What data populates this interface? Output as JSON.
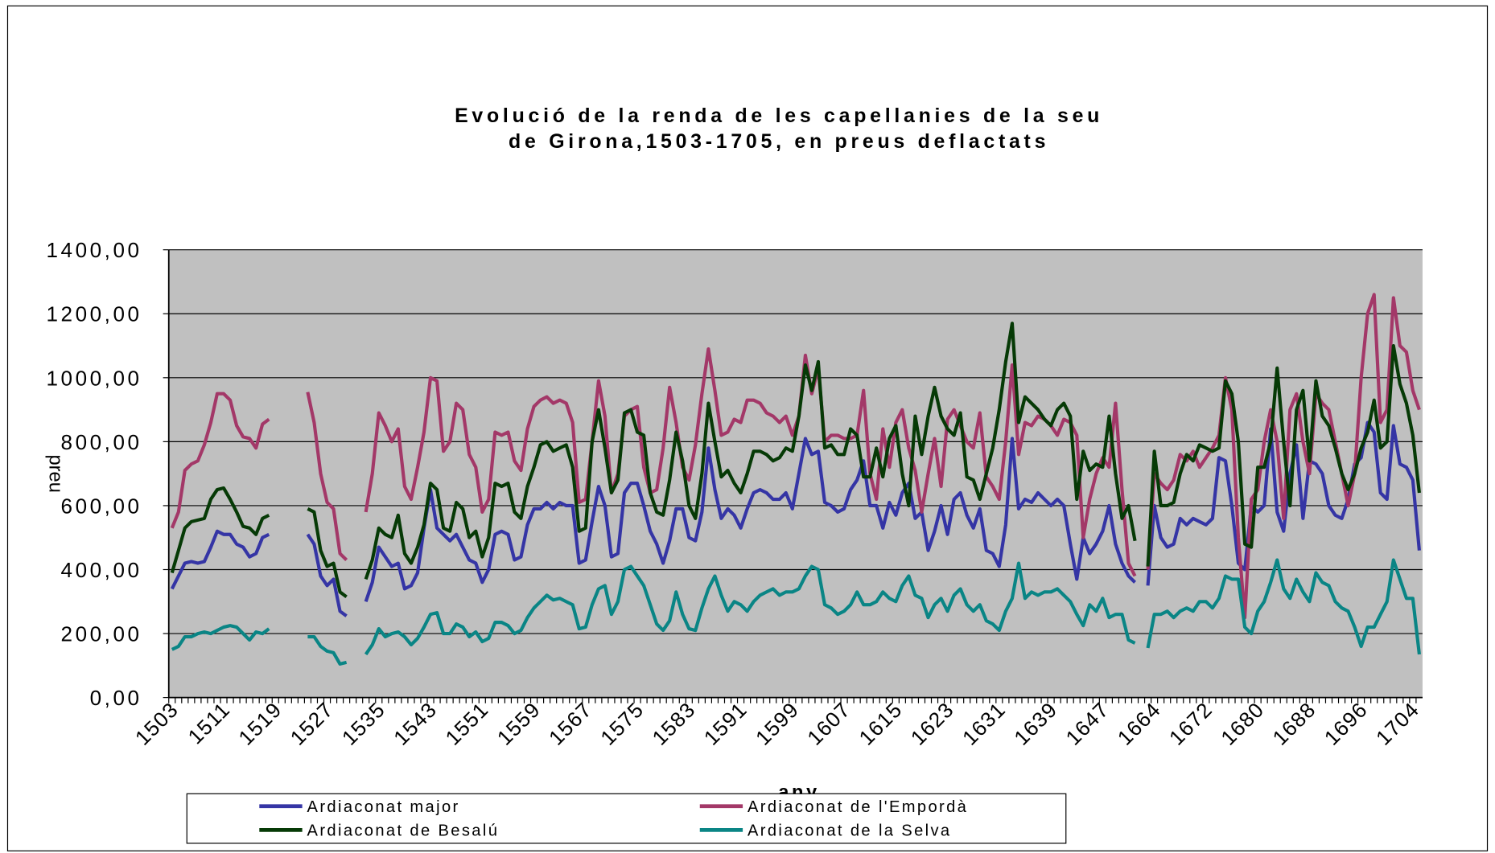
{
  "chart_data": {
    "type": "line",
    "title": [
      "Evolució de la renda de les capellanies de la seu",
      "de Girona,1503-1705, en preus deflactats"
    ],
    "x_label": "any",
    "y_label": "preu",
    "categories": [
      "1503",
      null,
      null,
      null,
      null,
      null,
      null,
      null,
      "1511",
      null,
      null,
      null,
      null,
      null,
      null,
      null,
      "1519",
      null,
      null,
      null,
      null,
      null,
      null,
      null,
      "1527",
      null,
      null,
      null,
      null,
      null,
      null,
      null,
      "1535",
      null,
      null,
      null,
      null,
      null,
      null,
      null,
      "1543",
      null,
      null,
      null,
      null,
      null,
      null,
      null,
      "1551",
      null,
      null,
      null,
      null,
      null,
      null,
      null,
      "1559",
      null,
      null,
      null,
      null,
      null,
      null,
      null,
      "1567",
      null,
      null,
      null,
      null,
      null,
      null,
      null,
      "1575",
      null,
      null,
      null,
      null,
      null,
      null,
      null,
      "1583",
      null,
      null,
      null,
      null,
      null,
      null,
      null,
      "1591",
      null,
      null,
      null,
      null,
      null,
      null,
      null,
      "1599",
      null,
      null,
      null,
      null,
      null,
      null,
      null,
      "1607",
      null,
      null,
      null,
      null,
      null,
      null,
      null,
      "1615",
      null,
      null,
      null,
      null,
      null,
      null,
      null,
      "1623",
      null,
      null,
      null,
      null,
      null,
      null,
      null,
      "1631",
      null,
      null,
      null,
      null,
      null,
      null,
      null,
      "1639",
      null,
      null,
      null,
      null,
      null,
      null,
      null,
      "1647",
      null,
      null,
      null,
      null,
      null,
      null,
      null,
      "1664",
      null,
      null,
      null,
      null,
      null,
      null,
      null,
      "1672",
      null,
      null,
      null,
      null,
      null,
      null,
      null,
      "1680",
      null,
      null,
      null,
      null,
      null,
      null,
      null,
      "1688",
      null,
      null,
      null,
      null,
      null,
      null,
      null,
      "1696",
      null,
      null,
      null,
      null,
      null,
      null,
      null,
      "1704",
      null
    ],
    "ylim": [
      0,
      1400
    ],
    "yticks": [
      {
        "value": 0,
        "label": "0,00"
      },
      {
        "value": 200,
        "label": "200,00"
      },
      {
        "value": 400,
        "label": "400,00"
      },
      {
        "value": 600,
        "label": "600,00"
      },
      {
        "value": 800,
        "label": "800,00"
      },
      {
        "value": 1000,
        "label": "1000,00"
      },
      {
        "value": 1200,
        "label": "1200,00"
      },
      {
        "value": 1400,
        "label": "1400,00"
      }
    ],
    "grid": true,
    "series": [
      {
        "name": "Ardiaconat major",
        "color": "#3535a5",
        "values": [
          340,
          380,
          420,
          425,
          420,
          425,
          470,
          520,
          510,
          510,
          480,
          470,
          440,
          450,
          500,
          510,
          null,
          null,
          null,
          null,
          null,
          510,
          480,
          380,
          350,
          370,
          270,
          255,
          null,
          null,
          300,
          360,
          470,
          440,
          410,
          420,
          340,
          350,
          390,
          530,
          650,
          530,
          510,
          490,
          510,
          470,
          430,
          420,
          360,
          400,
          510,
          520,
          510,
          430,
          440,
          540,
          590,
          590,
          610,
          590,
          610,
          600,
          600,
          420,
          430,
          550,
          660,
          600,
          440,
          450,
          640,
          670,
          670,
          600,
          520,
          480,
          420,
          490,
          590,
          590,
          500,
          490,
          580,
          780,
          650,
          560,
          590,
          570,
          530,
          590,
          640,
          650,
          640,
          620,
          620,
          640,
          590,
          700,
          810,
          760,
          770,
          610,
          600,
          580,
          590,
          650,
          680,
          740,
          600,
          600,
          530,
          610,
          570,
          640,
          670,
          560,
          580,
          460,
          520,
          600,
          510,
          620,
          640,
          570,
          530,
          590,
          460,
          450,
          410,
          540,
          810,
          590,
          620,
          610,
          640,
          620,
          600,
          620,
          600,
          480,
          370,
          500,
          450,
          480,
          520,
          600,
          480,
          420,
          380,
          360,
          null,
          350,
          600,
          500,
          470,
          480,
          560,
          540,
          560,
          550,
          540,
          560,
          750,
          740,
          600,
          420,
          400,
          600,
          580,
          600,
          840,
          580,
          520,
          700,
          790,
          560,
          740,
          730,
          700,
          600,
          570,
          560,
          620,
          730,
          750,
          860,
          830,
          640,
          620,
          850,
          730,
          720,
          680,
          460
        ]
      },
      {
        "name": "Ardiaconat de l'Empordà",
        "color": "#a33868",
        "values": [
          530,
          580,
          710,
          730,
          740,
          790,
          860,
          950,
          950,
          930,
          850,
          815,
          810,
          780,
          855,
          870,
          null,
          null,
          null,
          null,
          null,
          955,
          860,
          700,
          610,
          590,
          450,
          430,
          null,
          null,
          580,
          700,
          890,
          850,
          800,
          840,
          660,
          620,
          720,
          830,
          1000,
          990,
          770,
          800,
          920,
          900,
          760,
          720,
          580,
          620,
          830,
          820,
          830,
          740,
          710,
          840,
          910,
          930,
          940,
          920,
          930,
          920,
          860,
          610,
          620,
          800,
          990,
          880,
          640,
          700,
          880,
          900,
          910,
          720,
          640,
          650,
          780,
          970,
          860,
          720,
          680,
          790,
          950,
          1090,
          960,
          820,
          830,
          870,
          860,
          930,
          930,
          920,
          890,
          880,
          860,
          880,
          820,
          880,
          1070,
          950,
          1030,
          800,
          820,
          820,
          810,
          810,
          820,
          960,
          700,
          620,
          840,
          720,
          860,
          900,
          780,
          710,
          580,
          700,
          810,
          660,
          870,
          900,
          850,
          800,
          780,
          890,
          690,
          660,
          620,
          800,
          1040,
          760,
          860,
          850,
          880,
          870,
          850,
          820,
          870,
          860,
          820,
          500,
          620,
          700,
          750,
          720,
          920,
          650,
          420,
          380,
          null,
          400,
          700,
          670,
          650,
          680,
          760,
          740,
          770,
          720,
          750,
          780,
          820,
          1000,
          900,
          500,
          250,
          620,
          650,
          800,
          900,
          800,
          560,
          900,
          950,
          800,
          700,
          950,
          920,
          900,
          800,
          700,
          600,
          700,
          1000,
          1200,
          1260,
          860,
          900,
          1250,
          1100,
          1080,
          960,
          900
        ]
      },
      {
        "name": "Ardiaconat de Besalú",
        "color": "#063a06",
        "values": [
          390,
          460,
          530,
          550,
          555,
          560,
          620,
          650,
          655,
          620,
          580,
          535,
          530,
          510,
          560,
          570,
          null,
          null,
          null,
          null,
          null,
          590,
          580,
          460,
          410,
          420,
          330,
          315,
          null,
          null,
          370,
          430,
          530,
          510,
          500,
          570,
          450,
          420,
          470,
          540,
          670,
          650,
          530,
          520,
          610,
          590,
          500,
          520,
          440,
          500,
          670,
          660,
          670,
          580,
          560,
          660,
          720,
          790,
          800,
          770,
          780,
          790,
          720,
          520,
          530,
          800,
          900,
          780,
          640,
          680,
          890,
          900,
          830,
          820,
          640,
          580,
          570,
          680,
          830,
          740,
          600,
          560,
          700,
          920,
          800,
          690,
          710,
          670,
          640,
          700,
          770,
          770,
          760,
          740,
          750,
          780,
          770,
          880,
          1040,
          960,
          1050,
          780,
          790,
          760,
          760,
          840,
          820,
          690,
          690,
          780,
          690,
          810,
          850,
          700,
          600,
          880,
          760,
          880,
          970,
          880,
          840,
          820,
          890,
          690,
          680,
          620,
          700,
          780,
          900,
          1050,
          1170,
          860,
          940,
          920,
          900,
          870,
          850,
          900,
          920,
          880,
          620,
          770,
          710,
          730,
          720,
          880,
          700,
          560,
          600,
          490,
          null,
          410,
          770,
          600,
          600,
          610,
          700,
          760,
          740,
          790,
          780,
          770,
          780,
          990,
          950,
          800,
          480,
          470,
          720,
          720,
          800,
          1030,
          800,
          600,
          900,
          960,
          740,
          990,
          880,
          850,
          780,
          700,
          650,
          700,
          780,
          830,
          930,
          780,
          800,
          1100,
          980,
          920,
          820,
          640
        ]
      },
      {
        "name": "Ardiaconat de la Selva",
        "color": "#0a8585",
        "values": [
          150,
          160,
          190,
          190,
          200,
          205,
          200,
          210,
          220,
          225,
          220,
          200,
          180,
          205,
          200,
          215,
          null,
          null,
          null,
          null,
          null,
          190,
          190,
          160,
          145,
          140,
          105,
          110,
          null,
          null,
          135,
          165,
          215,
          190,
          200,
          205,
          190,
          165,
          185,
          220,
          260,
          265,
          200,
          200,
          230,
          220,
          190,
          205,
          175,
          185,
          235,
          235,
          225,
          200,
          210,
          250,
          280,
          300,
          320,
          305,
          310,
          300,
          290,
          215,
          220,
          290,
          340,
          350,
          260,
          300,
          400,
          410,
          380,
          350,
          290,
          230,
          210,
          240,
          330,
          260,
          215,
          210,
          280,
          340,
          380,
          320,
          270,
          300,
          290,
          270,
          300,
          320,
          330,
          340,
          320,
          330,
          330,
          340,
          380,
          410,
          400,
          290,
          280,
          260,
          270,
          290,
          330,
          290,
          290,
          300,
          330,
          310,
          300,
          350,
          380,
          320,
          310,
          250,
          290,
          310,
          270,
          320,
          340,
          290,
          270,
          290,
          240,
          230,
          210,
          270,
          310,
          420,
          310,
          330,
          320,
          330,
          330,
          340,
          320,
          300,
          260,
          225,
          290,
          270,
          310,
          250,
          260,
          260,
          180,
          170,
          null,
          155,
          260,
          260,
          270,
          250,
          270,
          280,
          270,
          300,
          300,
          280,
          310,
          380,
          370,
          370,
          220,
          200,
          270,
          300,
          360,
          430,
          340,
          310,
          370,
          330,
          300,
          390,
          360,
          350,
          300,
          280,
          270,
          220,
          160,
          220,
          220,
          260,
          300,
          430,
          370,
          310,
          310,
          135
        ]
      }
    ]
  }
}
